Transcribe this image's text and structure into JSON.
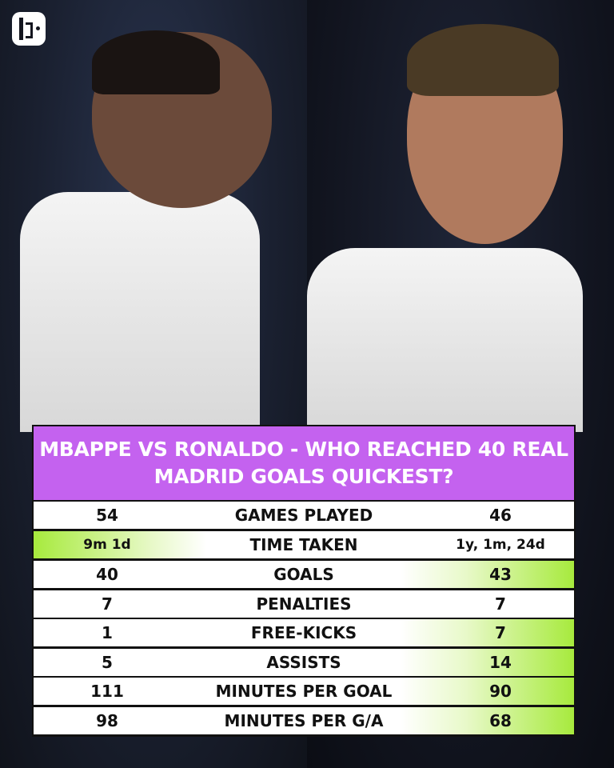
{
  "brand": {
    "logo": "brand-logo"
  },
  "title": "MBAPPE VS RONALDO - WHO REACHED 40 REAL MADRID GOALS QUICKEST?",
  "colors": {
    "header": "#c462ef",
    "highlight": "#a7ea3d"
  },
  "rows": [
    {
      "left": "54",
      "stat": "GAMES PLAYED",
      "right": "46",
      "winner": "none"
    },
    {
      "left": "9m 1d",
      "stat": "TIME TAKEN",
      "right": "1y, 1m, 24d",
      "winner": "left"
    },
    {
      "left": "40",
      "stat": "GOALS",
      "right": "43",
      "winner": "right"
    },
    {
      "left": "7",
      "stat": "PENALTIES",
      "right": "7",
      "winner": "none"
    },
    {
      "left": "1",
      "stat": "FREE-KICKS",
      "right": "7",
      "winner": "right"
    },
    {
      "left": "5",
      "stat": "ASSISTS",
      "right": "14",
      "winner": "right"
    },
    {
      "left": "111",
      "stat": "MINUTES PER GOAL",
      "right": "90",
      "winner": "right"
    },
    {
      "left": "98",
      "stat": "MINUTES PER G/A",
      "right": "68",
      "winner": "right"
    }
  ]
}
